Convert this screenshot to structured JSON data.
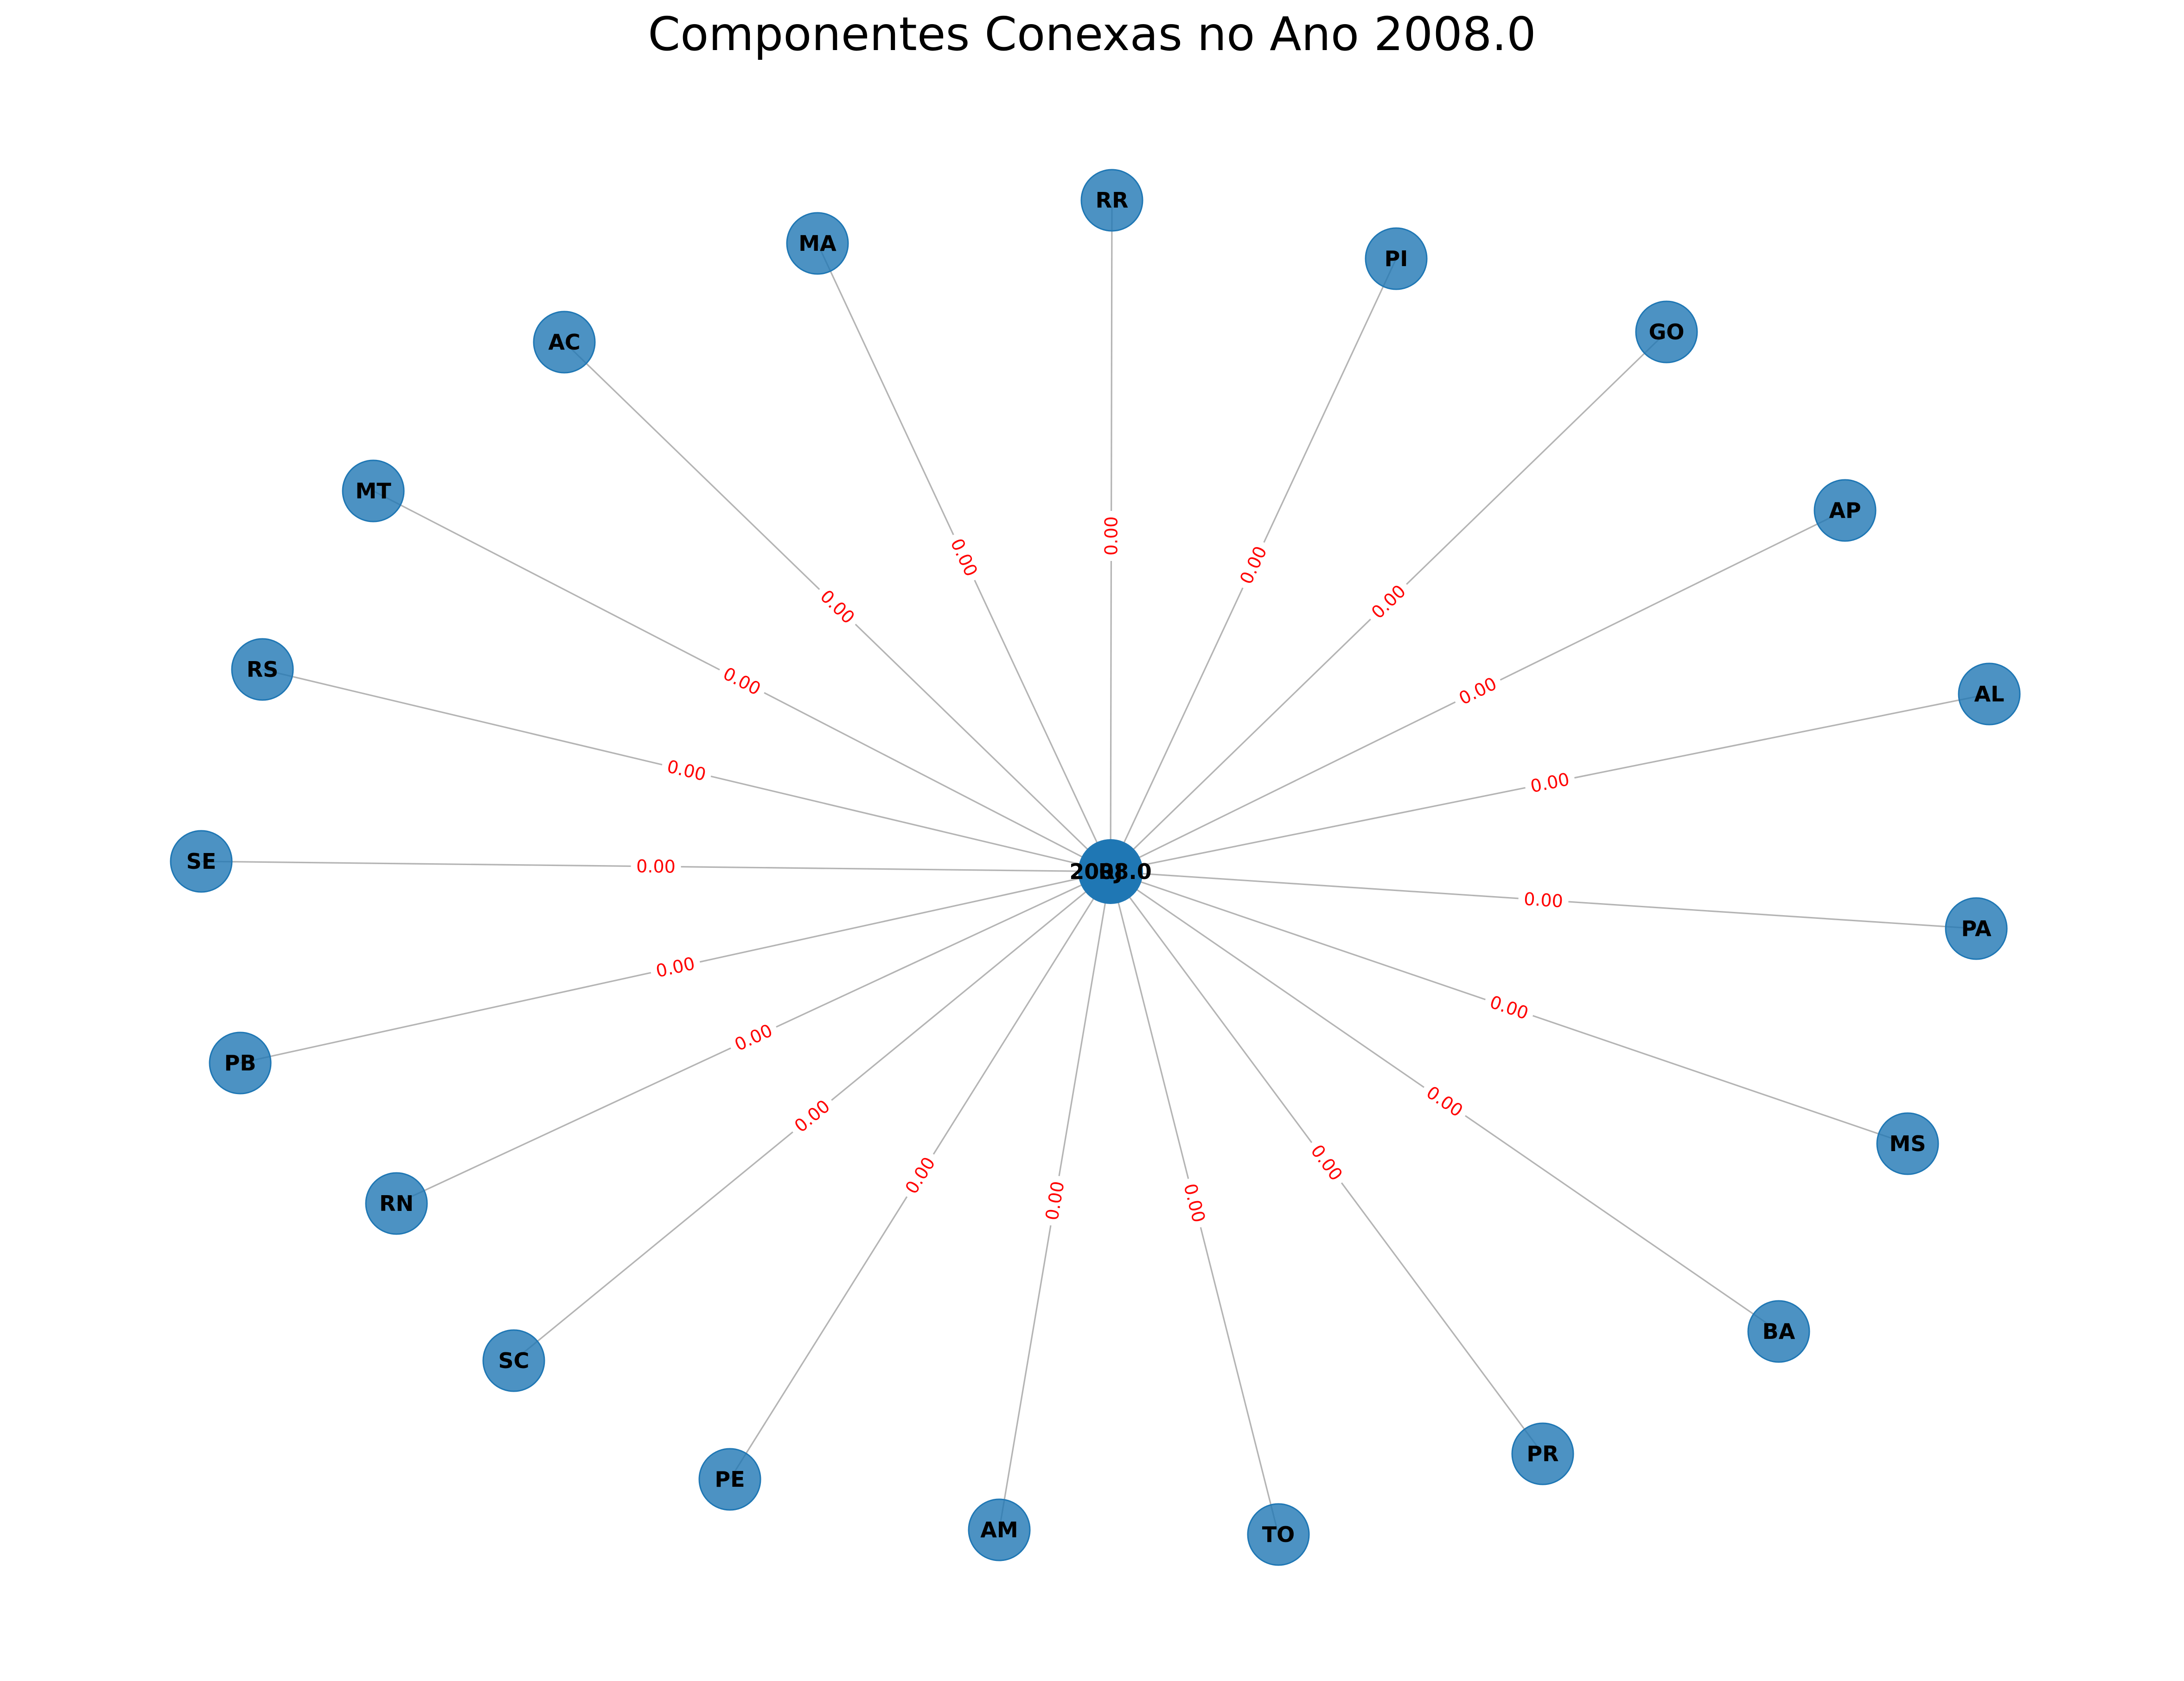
{
  "title": "Componentes Conexas no Ano 2008.0",
  "center": {
    "label": "2008.0",
    "overlap_label": "RJ"
  },
  "colors": {
    "node": "#1f77b4",
    "edge": "#b4b4b4",
    "edge_label": "#ff0000",
    "text": "#000000"
  },
  "nodes": [
    {
      "id": "RR",
      "edge_label": "0.00"
    },
    {
      "id": "PI",
      "edge_label": "0.00"
    },
    {
      "id": "GO",
      "edge_label": "0.00"
    },
    {
      "id": "AP",
      "edge_label": "0.00"
    },
    {
      "id": "AL",
      "edge_label": "0.00"
    },
    {
      "id": "PA",
      "edge_label": "0.00"
    },
    {
      "id": "MS",
      "edge_label": "0.00"
    },
    {
      "id": "BA",
      "edge_label": "0.00"
    },
    {
      "id": "PR",
      "edge_label": "0.00"
    },
    {
      "id": "TO",
      "edge_label": "0.00"
    },
    {
      "id": "AM",
      "edge_label": "0.00"
    },
    {
      "id": "PE",
      "edge_label": "0.00"
    },
    {
      "id": "SC",
      "edge_label": "0.00"
    },
    {
      "id": "RN",
      "edge_label": "0.00"
    },
    {
      "id": "PB",
      "edge_label": "0.00"
    },
    {
      "id": "SE",
      "edge_label": "0.00"
    },
    {
      "id": "RS",
      "edge_label": "0.00"
    },
    {
      "id": "MT",
      "edge_label": "0.00"
    },
    {
      "id": "AC",
      "edge_label": "0.00"
    },
    {
      "id": "MA",
      "edge_label": "0.00"
    }
  ]
}
